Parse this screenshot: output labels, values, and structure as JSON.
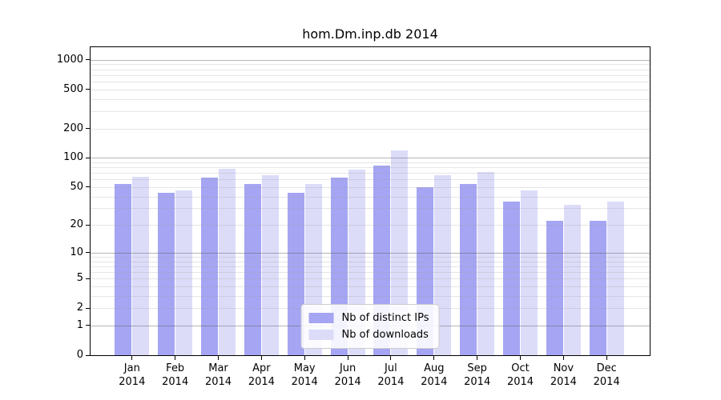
{
  "chart_data": {
    "type": "bar",
    "title": "hom.Dm.inp.db 2014",
    "categories": [
      "Jan",
      "Feb",
      "Mar",
      "Apr",
      "May",
      "Jun",
      "Jul",
      "Aug",
      "Sep",
      "Oct",
      "Nov",
      "Dec"
    ],
    "category_year": "2014",
    "series": [
      {
        "name": "Nb of distinct IPs",
        "color": "#a5a5f3",
        "values": [
          54,
          44,
          63,
          54,
          44,
          63,
          84,
          50,
          54,
          35,
          22,
          22
        ]
      },
      {
        "name": "Nb of downloads",
        "color": "#dcdcf9",
        "values": [
          64,
          46,
          77,
          66,
          54,
          76,
          120,
          66,
          72,
          46,
          33,
          35
        ]
      }
    ],
    "y_ticks": [
      0,
      1,
      2,
      5,
      10,
      20,
      50,
      100,
      200,
      500,
      1000
    ],
    "y_scale": "log1p",
    "ylim": [
      0,
      1340
    ],
    "xlabel": "",
    "ylabel": "",
    "grid": true,
    "legend_position": "lower center"
  }
}
